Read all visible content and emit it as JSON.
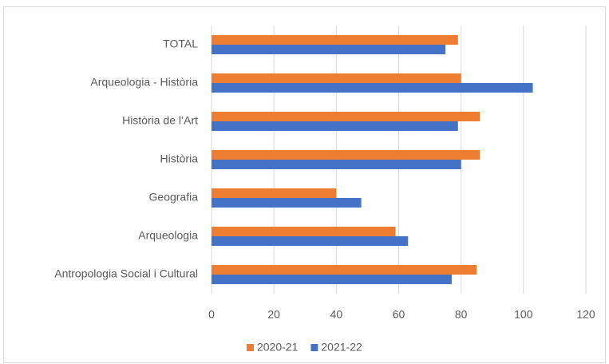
{
  "chart_data": {
    "type": "hbar",
    "categories": [
      "TOTAL",
      "Arqueologia - Història",
      "Història de l’Art",
      "Història",
      "Geografia",
      "Arqueologia",
      "Antropologia Social i Cultural"
    ],
    "series": [
      {
        "name": "2020-21",
        "color": "#ed7d31",
        "values": [
          79,
          80,
          86,
          86,
          40,
          59,
          85
        ]
      },
      {
        "name": "2021-22",
        "color": "#4472c4",
        "values": [
          75,
          103,
          79,
          80,
          48,
          63,
          77
        ]
      }
    ],
    "xlim": [
      0,
      120
    ],
    "xticks": [
      0,
      20,
      40,
      60,
      80,
      100,
      120
    ],
    "grid": true,
    "legend": "bottom"
  }
}
